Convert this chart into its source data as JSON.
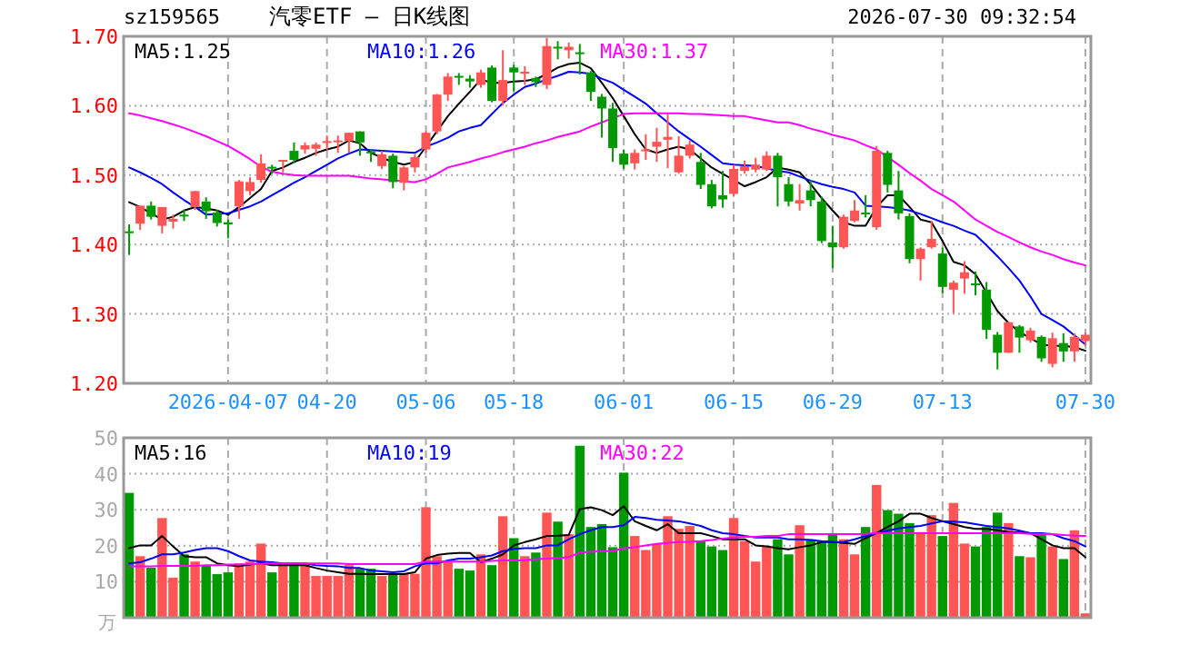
{
  "chart_data": [
    {
      "type": "candlestick",
      "title": "汽零ETF — 日K线图",
      "annotations": [
        "sz159565",
        "2026-07-30 09:32:54"
      ],
      "categories": [
        null,
        null,
        null,
        null,
        null,
        null,
        null,
        null,
        null,
        "2026-04-07",
        null,
        null,
        null,
        null,
        null,
        null,
        null,
        null,
        "04-20",
        null,
        null,
        null,
        null,
        null,
        null,
        null,
        null,
        "05-06",
        null,
        null,
        null,
        null,
        null,
        null,
        null,
        "05-18",
        null,
        null,
        null,
        null,
        null,
        null,
        null,
        null,
        null,
        "06-01",
        null,
        null,
        null,
        null,
        null,
        null,
        null,
        null,
        null,
        "06-15",
        null,
        null,
        null,
        null,
        null,
        null,
        null,
        null,
        "06-29",
        null,
        null,
        null,
        null,
        null,
        null,
        null,
        null,
        null,
        "07-13",
        null,
        null,
        null,
        null,
        null,
        null,
        null,
        null,
        null,
        null,
        null,
        null,
        "07-30"
      ],
      "ohlc": [
        [
          1.419,
          1.429,
          1.385,
          1.418
        ],
        [
          1.43,
          1.456,
          1.421,
          1.456
        ],
        [
          1.456,
          1.462,
          1.436,
          1.44
        ],
        [
          1.427,
          1.454,
          1.416,
          1.454
        ],
        [
          1.433,
          1.443,
          1.423,
          1.437
        ],
        [
          1.443,
          1.45,
          1.434,
          1.442
        ],
        [
          1.454,
          1.477,
          1.45,
          1.477
        ],
        [
          1.462,
          1.468,
          1.437,
          1.448
        ],
        [
          1.446,
          1.45,
          1.426,
          1.431
        ],
        [
          1.432,
          1.436,
          1.409,
          1.429
        ],
        [
          1.455,
          1.493,
          1.437,
          1.491
        ],
        [
          1.477,
          1.497,
          1.471,
          1.49
        ],
        [
          1.493,
          1.53,
          1.489,
          1.517
        ],
        [
          1.512,
          1.515,
          1.502,
          1.511
        ],
        [
          1.52,
          1.522,
          1.504,
          1.522
        ],
        [
          1.535,
          1.547,
          1.517,
          1.522
        ],
        [
          1.537,
          1.547,
          1.531,
          1.543
        ],
        [
          1.538,
          1.547,
          1.528,
          1.544
        ],
        [
          1.547,
          1.557,
          1.536,
          1.549
        ],
        [
          1.548,
          1.557,
          1.532,
          1.55
        ],
        [
          1.549,
          1.561,
          1.532,
          1.561
        ],
        [
          1.563,
          1.563,
          1.528,
          1.547
        ],
        [
          1.534,
          1.537,
          1.519,
          1.532
        ],
        [
          1.513,
          1.535,
          1.509,
          1.53
        ],
        [
          1.528,
          1.531,
          1.481,
          1.49
        ],
        [
          1.489,
          1.513,
          1.478,
          1.511
        ],
        [
          1.511,
          1.53,
          1.504,
          1.526
        ],
        [
          1.537,
          1.563,
          1.532,
          1.561
        ],
        [
          1.563,
          1.617,
          1.559,
          1.616
        ],
        [
          1.616,
          1.647,
          1.607,
          1.642
        ],
        [
          1.643,
          1.647,
          1.63,
          1.641
        ],
        [
          1.639,
          1.644,
          1.626,
          1.635
        ],
        [
          1.63,
          1.652,
          1.626,
          1.648
        ],
        [
          1.655,
          1.658,
          1.605,
          1.607
        ],
        [
          1.607,
          1.68,
          1.6,
          1.637
        ],
        [
          1.655,
          1.659,
          1.621,
          1.648
        ],
        [
          1.647,
          1.657,
          1.63,
          1.649
        ],
        [
          1.64,
          1.642,
          1.627,
          1.634
        ],
        [
          1.63,
          1.698,
          1.624,
          1.686
        ],
        [
          1.685,
          1.693,
          1.667,
          1.683
        ],
        [
          1.68,
          1.691,
          1.668,
          1.685
        ],
        [
          1.677,
          1.689,
          1.645,
          1.675
        ],
        [
          1.648,
          1.65,
          1.607,
          1.62
        ],
        [
          1.613,
          1.617,
          1.554,
          1.596
        ],
        [
          1.596,
          1.604,
          1.519,
          1.539
        ],
        [
          1.531,
          1.537,
          1.509,
          1.515
        ],
        [
          1.517,
          1.537,
          1.508,
          1.532
        ],
        [
          1.535,
          1.559,
          1.522,
          1.537
        ],
        [
          1.541,
          1.568,
          1.519,
          1.548
        ],
        [
          1.551,
          1.588,
          1.51,
          1.555
        ],
        [
          1.504,
          1.556,
          1.502,
          1.528
        ],
        [
          1.528,
          1.55,
          1.524,
          1.544
        ],
        [
          1.519,
          1.532,
          1.48,
          1.486
        ],
        [
          1.487,
          1.493,
          1.452,
          1.455
        ],
        [
          1.471,
          1.506,
          1.453,
          1.465
        ],
        [
          1.473,
          1.515,
          1.469,
          1.509
        ],
        [
          1.506,
          1.521,
          1.502,
          1.513
        ],
        [
          1.508,
          1.525,
          1.504,
          1.515
        ],
        [
          1.508,
          1.534,
          1.506,
          1.528
        ],
        [
          1.528,
          1.532,
          1.455,
          1.497
        ],
        [
          1.487,
          1.497,
          1.455,
          1.462
        ],
        [
          1.459,
          1.487,
          1.449,
          1.464
        ],
        [
          1.478,
          1.493,
          1.455,
          1.464
        ],
        [
          1.462,
          1.469,
          1.402,
          1.405
        ],
        [
          1.403,
          1.427,
          1.366,
          1.396
        ],
        [
          1.396,
          1.443,
          1.394,
          1.44
        ],
        [
          1.434,
          1.464,
          1.432,
          1.449
        ],
        [
          1.446,
          1.471,
          1.439,
          1.444
        ],
        [
          1.425,
          1.542,
          1.421,
          1.535
        ],
        [
          1.532,
          1.535,
          1.475,
          1.486
        ],
        [
          1.478,
          1.506,
          1.436,
          1.445
        ],
        [
          1.441,
          1.445,
          1.373,
          1.379
        ],
        [
          1.379,
          1.396,
          1.348,
          1.394
        ],
        [
          1.396,
          1.434,
          1.394,
          1.408
        ],
        [
          1.387,
          1.396,
          1.33,
          1.339
        ],
        [
          1.335,
          1.348,
          1.301,
          1.345
        ],
        [
          1.351,
          1.376,
          1.329,
          1.36
        ],
        [
          1.344,
          1.361,
          1.327,
          1.342
        ],
        [
          1.335,
          1.346,
          1.264,
          1.277
        ],
        [
          1.27,
          1.274,
          1.22,
          1.244
        ],
        [
          1.244,
          1.289,
          1.244,
          1.288
        ],
        [
          1.282,
          1.284,
          1.244,
          1.266
        ],
        [
          1.262,
          1.28,
          1.259,
          1.276
        ],
        [
          1.267,
          1.269,
          1.231,
          1.236
        ],
        [
          1.228,
          1.273,
          1.223,
          1.265
        ],
        [
          1.258,
          1.272,
          1.231,
          1.246
        ],
        [
          1.246,
          1.272,
          1.231,
          1.267
        ],
        [
          1.261,
          1.273,
          1.254,
          1.27
        ]
      ],
      "colors": [
        "#009900",
        "#ff5555",
        "#009900",
        "#ff5555",
        "#ff5555",
        "#009900",
        "#ff5555",
        "#009900",
        "#009900",
        "#009900",
        "#ff5555",
        "#ff5555",
        "#ff5555",
        "#009900",
        "#ff5555",
        "#009900",
        "#ff5555",
        "#ff5555",
        "#ff5555",
        "#ff5555",
        "#ff5555",
        "#009900",
        "#009900",
        "#ff5555",
        "#009900",
        "#ff5555",
        "#ff5555",
        "#ff5555",
        "#ff5555",
        "#ff5555",
        "#009900",
        "#009900",
        "#ff5555",
        "#009900",
        "#ff5555",
        "#009900",
        "#ff5555",
        "#009900",
        "#ff5555",
        "#009900",
        "#ff5555",
        "#009900",
        "#009900",
        "#009900",
        "#009900",
        "#009900",
        "#ff5555",
        "#ff5555",
        "#ff5555",
        "#ff5555",
        "#ff5555",
        "#ff5555",
        "#009900",
        "#009900",
        "#009900",
        "#ff5555",
        "#ff5555",
        "#ff5555",
        "#ff5555",
        "#009900",
        "#009900",
        "#ff5555",
        "#009900",
        "#009900",
        "#009900",
        "#ff5555",
        "#ff5555",
        "#009900",
        "#ff5555",
        "#009900",
        "#009900",
        "#009900",
        "#ff5555",
        "#ff5555",
        "#009900",
        "#ff5555",
        "#ff5555",
        "#009900",
        "#009900",
        "#009900",
        "#ff5555",
        "#009900",
        "#ff5555",
        "#009900",
        "#ff5555",
        "#009900",
        "#ff5555",
        "#ff5555"
      ],
      "series": [
        {
          "type": "line",
          "name": "MA5:1.25",
          "color": "#000000",
          "values": [
            1.461,
            1.454,
            1.445,
            1.436,
            1.44,
            1.449,
            1.454,
            1.452,
            1.449,
            1.443,
            1.454,
            1.467,
            1.48,
            1.506,
            1.511,
            1.519,
            1.525,
            1.532,
            1.537,
            1.541,
            1.55,
            1.546,
            1.532,
            1.525,
            1.519,
            1.515,
            1.519,
            1.541,
            1.563,
            1.585,
            1.603,
            1.62,
            1.638,
            1.633,
            1.633,
            1.635,
            1.636,
            1.638,
            1.646,
            1.655,
            1.66,
            1.662,
            1.654,
            1.633,
            1.611,
            1.585,
            1.559,
            1.537,
            1.532,
            1.537,
            1.541,
            1.537,
            1.524,
            1.511,
            1.502,
            1.493,
            1.484,
            1.49,
            1.497,
            1.511,
            1.508,
            1.504,
            1.487,
            1.467,
            1.449,
            1.432,
            1.427,
            1.427,
            1.454,
            1.471,
            1.471,
            1.454,
            1.436,
            1.432,
            1.405,
            1.375,
            1.37,
            1.357,
            1.331,
            1.304,
            1.287,
            1.274,
            1.265,
            1.256,
            1.254,
            1.254,
            1.252,
            1.247
          ]
        },
        {
          "type": "line",
          "name": "MA10:1.26",
          "color": "#0000ff",
          "values": [
            1.511,
            1.504,
            1.496,
            1.487,
            1.475,
            1.464,
            1.454,
            1.443,
            1.444,
            1.445,
            1.45,
            1.455,
            1.462,
            1.471,
            1.48,
            1.489,
            1.497,
            1.506,
            1.515,
            1.524,
            1.531,
            1.537,
            1.536,
            1.535,
            1.534,
            1.533,
            1.532,
            1.541,
            1.547,
            1.554,
            1.563,
            1.568,
            1.572,
            1.588,
            1.604,
            1.616,
            1.627,
            1.632,
            1.638,
            1.643,
            1.649,
            1.648,
            1.646,
            1.639,
            1.633,
            1.623,
            1.613,
            1.603,
            1.589,
            1.576,
            1.563,
            1.552,
            1.541,
            1.529,
            1.517,
            1.515,
            1.514,
            1.513,
            1.51,
            1.506,
            1.504,
            1.498,
            1.492,
            1.487,
            1.483,
            1.48,
            1.475,
            1.456,
            1.455,
            1.454,
            1.452,
            1.449,
            1.444,
            1.438,
            1.432,
            1.427,
            1.42,
            1.414,
            1.399,
            1.383,
            1.366,
            1.348,
            1.325,
            1.3,
            1.291,
            1.282,
            1.269,
            1.256
          ]
        },
        {
          "type": "line",
          "name": "MA30:1.37",
          "color": "#ff00ff",
          "values": [
            1.589,
            1.586,
            1.582,
            1.578,
            1.573,
            1.568,
            1.562,
            1.556,
            1.549,
            1.542,
            1.533,
            1.523,
            1.512,
            1.505,
            1.502,
            1.5,
            1.499,
            1.499,
            1.499,
            1.499,
            1.499,
            1.497,
            1.495,
            1.494,
            1.493,
            1.491,
            1.49,
            1.494,
            1.502,
            1.511,
            1.515,
            1.519,
            1.524,
            1.528,
            1.533,
            1.537,
            1.541,
            1.546,
            1.55,
            1.555,
            1.559,
            1.563,
            1.57,
            1.576,
            1.582,
            1.588,
            1.589,
            1.589,
            1.589,
            1.589,
            1.589,
            1.588,
            1.588,
            1.587,
            1.586,
            1.585,
            1.585,
            1.582,
            1.579,
            1.576,
            1.576,
            1.572,
            1.567,
            1.563,
            1.558,
            1.554,
            1.55,
            1.543,
            1.537,
            1.526,
            1.515,
            1.503,
            1.492,
            1.48,
            1.471,
            1.462,
            1.449,
            1.436,
            1.427,
            1.418,
            1.411,
            1.403,
            1.396,
            1.39,
            1.385,
            1.379,
            1.374,
            1.37
          ]
        }
      ],
      "ylim": [
        1.2,
        1.7
      ],
      "yticks": [
        {
          "value": 1.2,
          "label": "1.20"
        },
        {
          "value": 1.3,
          "label": "1.30"
        },
        {
          "value": 1.4,
          "label": "1.40"
        },
        {
          "value": 1.5,
          "label": "1.50"
        },
        {
          "value": 1.6,
          "label": "1.60"
        },
        {
          "value": 1.7,
          "label": "1.70"
        }
      ],
      "grid": true,
      "legend": "top"
    },
    {
      "type": "bar",
      "ylabel": "万",
      "categories": [
        null,
        null,
        null,
        null,
        null,
        null,
        null,
        null,
        null,
        null,
        null,
        null,
        null,
        null,
        null,
        null,
        null,
        null,
        null,
        null,
        null,
        null,
        null,
        null,
        null,
        null,
        null,
        null,
        null,
        null,
        null,
        null,
        null,
        null,
        null,
        null,
        null,
        null,
        null,
        null,
        null,
        null,
        null,
        null,
        null,
        null,
        null,
        null,
        null,
        null,
        null,
        null,
        null,
        null,
        null,
        null,
        null,
        null,
        null,
        null,
        null,
        null,
        null,
        null,
        null,
        null,
        null,
        null,
        null,
        null,
        null,
        null,
        null,
        null,
        null,
        null,
        null,
        null,
        null,
        null,
        null,
        null,
        null,
        null,
        null,
        null,
        null,
        null
      ],
      "series": [
        {
          "type": "bar",
          "colors": [
            "#009900",
            "#ff5555",
            "#009900",
            "#ff5555",
            "#ff5555",
            "#009900",
            "#ff5555",
            "#009900",
            "#009900",
            "#009900",
            "#ff5555",
            "#ff5555",
            "#ff5555",
            "#009900",
            "#ff5555",
            "#009900",
            "#ff5555",
            "#ff5555",
            "#ff5555",
            "#ff5555",
            "#ff5555",
            "#009900",
            "#009900",
            "#ff5555",
            "#009900",
            "#ff5555",
            "#ff5555",
            "#ff5555",
            "#ff5555",
            "#ff5555",
            "#009900",
            "#009900",
            "#ff5555",
            "#009900",
            "#ff5555",
            "#009900",
            "#ff5555",
            "#009900",
            "#ff5555",
            "#009900",
            "#ff5555",
            "#009900",
            "#009900",
            "#009900",
            "#009900",
            "#009900",
            "#ff5555",
            "#ff5555",
            "#ff5555",
            "#ff5555",
            "#ff5555",
            "#ff5555",
            "#009900",
            "#009900",
            "#009900",
            "#ff5555",
            "#ff5555",
            "#ff5555",
            "#ff5555",
            "#009900",
            "#009900",
            "#ff5555",
            "#009900",
            "#009900",
            "#009900",
            "#ff5555",
            "#ff5555",
            "#009900",
            "#ff5555",
            "#009900",
            "#009900",
            "#009900",
            "#ff5555",
            "#ff5555",
            "#009900",
            "#ff5555",
            "#ff5555",
            "#009900",
            "#009900",
            "#009900",
            "#ff5555",
            "#009900",
            "#ff5555",
            "#009900",
            "#ff5555",
            "#009900",
            "#ff5555",
            "#ff5555"
          ],
          "values": [
            34.7,
            17.1,
            13.9,
            27.7,
            11.1,
            17.6,
            15.6,
            14.6,
            12.1,
            12.6,
            15.1,
            15.6,
            20.6,
            12.6,
            15.1,
            15.1,
            14.6,
            11.6,
            11.6,
            11.6,
            14.6,
            13.6,
            13.6,
            11.6,
            12.1,
            12.2,
            12.2,
            30.7,
            17.1,
            15.6,
            13.6,
            13.1,
            17.6,
            14.6,
            28.2,
            22.1,
            17.1,
            18.1,
            29.2,
            26.7,
            23.2,
            47.8,
            25.2,
            26.0,
            19.6,
            40.3,
            22.7,
            18.8,
            20.5,
            28.2,
            24.7,
            25.5,
            21.3,
            19.8,
            18.8,
            27.7,
            21.3,
            15.6,
            19.8,
            21.8,
            17.6,
            25.7,
            21.8,
            21.3,
            23.5,
            21.8,
            17.6,
            25.2,
            36.9,
            29.9,
            28.9,
            26.3,
            23.8,
            28.5,
            22.7,
            31.9,
            20.6,
            19.8,
            25.2,
            29.2,
            26.3,
            17.1,
            16.8,
            23.0,
            19.8,
            16.3,
            24.3,
            1.2
          ]
        },
        {
          "type": "line",
          "name": "MA5:16",
          "color": "#000000",
          "values": [
            19.3,
            20.1,
            20.1,
            22.7,
            19.8,
            17.1,
            16.8,
            16.8,
            15.1,
            14.6,
            14.3,
            14.8,
            15.1,
            14.6,
            14.6,
            14.6,
            14.6,
            13.8,
            13.1,
            12.6,
            12.2,
            12.2,
            12.1,
            12.1,
            12.1,
            12.1,
            12.6,
            16.4,
            17.4,
            17.8,
            18.0,
            18.0,
            15.4,
            16.4,
            17.6,
            20.1,
            21.0,
            21.8,
            22.7,
            22.8,
            23.0,
            30.2,
            30.7,
            29.9,
            28.5,
            31.0,
            26.8,
            25.5,
            24.3,
            26.0,
            23.5,
            23.5,
            23.5,
            22.7,
            21.8,
            21.8,
            21.8,
            20.1,
            19.8,
            19.3,
            19.0,
            19.6,
            20.1,
            21.0,
            21.0,
            20.8,
            20.5,
            22.1,
            23.5,
            25.2,
            26.8,
            28.9,
            28.9,
            27.7,
            26.8,
            26.0,
            25.2,
            24.7,
            24.7,
            24.3,
            23.8,
            23.7,
            23.5,
            21.8,
            20.1,
            19.3,
            19.3,
            16.8
          ]
        },
        {
          "type": "line",
          "name": "MA10:19",
          "color": "#0000ff",
          "values": [
            15.1,
            15.4,
            16.4,
            17.6,
            17.6,
            18.1,
            18.8,
            19.3,
            19.3,
            18.5,
            17.1,
            15.9,
            15.6,
            15.4,
            15.1,
            15.1,
            15.1,
            14.6,
            14.4,
            14.3,
            13.8,
            13.8,
            13.1,
            12.9,
            12.6,
            12.9,
            14.3,
            15.1,
            15.1,
            15.9,
            16.4,
            16.4,
            16.8,
            17.3,
            18.5,
            19.1,
            19.3,
            19.3,
            20.1,
            20.1,
            21.8,
            23.2,
            24.3,
            25.2,
            25.2,
            25.7,
            28.0,
            27.7,
            27.2,
            27.0,
            26.8,
            26.2,
            25.5,
            24.3,
            23.5,
            23.2,
            22.7,
            22.3,
            22.3,
            22.3,
            21.8,
            21.8,
            21.6,
            21.3,
            21.1,
            21.0,
            21.8,
            22.7,
            23.5,
            24.2,
            24.8,
            25.2,
            25.5,
            26.2,
            26.8,
            26.7,
            26.5,
            26.0,
            25.5,
            25.2,
            24.8,
            24.2,
            23.5,
            23.5,
            23.2,
            22.1,
            21.3,
            19.8
          ]
        },
        {
          "type": "line",
          "name": "MA30:22",
          "color": "#ff00ff",
          "values": [
            14.3,
            14.3,
            14.3,
            14.4,
            14.4,
            14.4,
            14.4,
            14.6,
            14.6,
            14.8,
            14.8,
            14.9,
            14.9,
            15.1,
            15.1,
            15.1,
            15.1,
            15.1,
            15.1,
            15.1,
            14.9,
            14.9,
            14.9,
            14.9,
            14.9,
            14.9,
            14.9,
            15.6,
            15.6,
            15.6,
            15.6,
            15.6,
            15.6,
            15.8,
            15.9,
            15.9,
            15.9,
            16.3,
            16.4,
            16.6,
            16.8,
            18.1,
            18.3,
            18.5,
            18.5,
            19.3,
            19.6,
            20.1,
            20.5,
            20.8,
            21.0,
            21.1,
            21.3,
            21.6,
            22.0,
            22.3,
            22.5,
            22.5,
            22.7,
            22.7,
            23.2,
            23.2,
            23.2,
            23.2,
            23.2,
            23.2,
            23.2,
            23.3,
            23.5,
            23.5,
            23.5,
            23.5,
            23.5,
            23.5,
            23.5,
            23.5,
            23.5,
            23.5,
            23.5,
            23.5,
            23.5,
            23.5,
            23.3,
            23.2,
            23.2,
            23.0,
            22.8,
            22.7
          ]
        }
      ],
      "ylim": [
        0,
        50
      ],
      "yticks": [
        10,
        20,
        30,
        40,
        50
      ],
      "grid": true,
      "legend": "top",
      "tick_labels": "y"
    }
  ]
}
